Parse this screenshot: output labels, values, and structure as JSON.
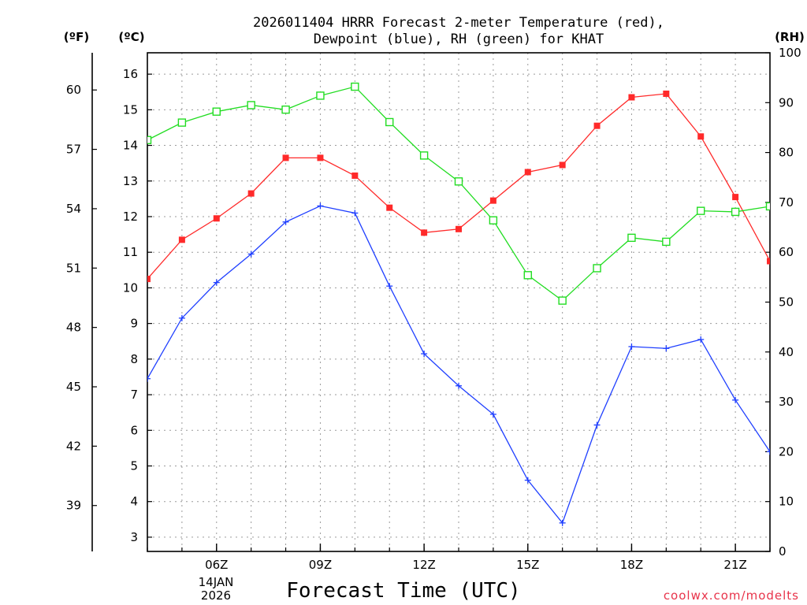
{
  "chart_data": {
    "type": "line",
    "title_line1": "2026011404 HRRR Forecast 2-meter Temperature (red),",
    "title_line2": "Dewpoint (blue), RH (green) for KHAT",
    "xlabel": "Forecast Time (UTC)",
    "credit": "coolwx.com/modelts",
    "date_line1": "14JAN",
    "date_line2": "2026",
    "units": {
      "fahrenheit": "(ºF)",
      "celsius": "(ºC)",
      "rh": "(RH)"
    },
    "x_hours": [
      4,
      5,
      6,
      7,
      8,
      9,
      10,
      11,
      12,
      13,
      14,
      15,
      16,
      17,
      18,
      19,
      20,
      21,
      22
    ],
    "x_ticks": [
      {
        "hour": 6,
        "label": "06Z"
      },
      {
        "hour": 9,
        "label": "09Z"
      },
      {
        "hour": 12,
        "label": "12Z"
      },
      {
        "hour": 15,
        "label": "15Z"
      },
      {
        "hour": 18,
        "label": "18Z"
      },
      {
        "hour": 21,
        "label": "21Z"
      }
    ],
    "xlim": [
      4,
      22
    ],
    "celsius_axis": {
      "range": [
        2.6,
        16.6
      ],
      "ticks": [
        3,
        4,
        5,
        6,
        7,
        8,
        9,
        10,
        11,
        12,
        13,
        14,
        15,
        16
      ]
    },
    "fahrenheit_axis": {
      "ticks": [
        39,
        42,
        45,
        48,
        51,
        54,
        57,
        60
      ]
    },
    "rh_axis": {
      "range": [
        0,
        100
      ],
      "ticks": [
        0,
        10,
        20,
        30,
        40,
        50,
        60,
        70,
        80,
        90,
        100
      ]
    },
    "series": [
      {
        "name": "Temperature",
        "color": "#ff2a2a",
        "axis": "celsius",
        "marker": "filled-square",
        "values": [
          10.25,
          11.35,
          11.95,
          12.65,
          13.65,
          13.65,
          13.15,
          12.25,
          11.55,
          11.65,
          12.45,
          13.25,
          13.45,
          14.55,
          15.35,
          15.45,
          14.25,
          12.55,
          10.75
        ]
      },
      {
        "name": "Dewpoint",
        "color": "#1f3fff",
        "axis": "celsius",
        "marker": "plus",
        "values": [
          7.45,
          9.15,
          10.15,
          10.95,
          11.85,
          12.3,
          12.1,
          10.05,
          8.15,
          7.25,
          6.45,
          4.6,
          3.4,
          6.15,
          8.35,
          8.3,
          8.55,
          6.85,
          5.4
        ]
      },
      {
        "name": "RH",
        "color": "#22dd22",
        "axis": "rh",
        "marker": "open-square",
        "values": [
          82.5,
          86,
          88.2,
          89.5,
          88.6,
          91.4,
          93.2,
          86.1,
          79.4,
          74.2,
          66.4,
          55.4,
          50.3,
          56.8,
          62.9,
          62.1,
          68.3,
          68.1,
          69.2
        ]
      }
    ]
  }
}
